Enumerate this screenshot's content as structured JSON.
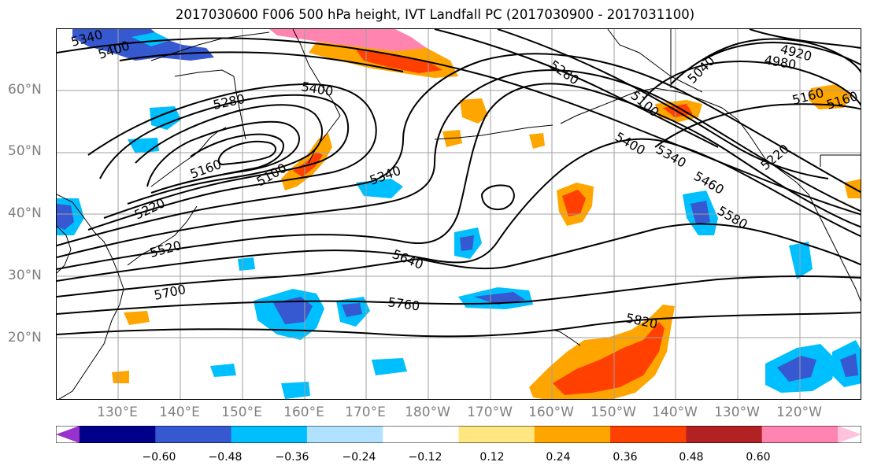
{
  "title": "2017030600 F006 500 hPa height, IVT Landfall PC (2017030900 - 2017031100)",
  "lat_labels": [
    "60°N",
    "50°N",
    "40°N",
    "30°N",
    "20°N"
  ],
  "lon_labels": [
    "130°E",
    "140°E",
    "150°E",
    "160°E",
    "170°E",
    "180°W",
    "170°W",
    "160°W",
    "150°W",
    "140°W",
    "130°W",
    "120°W"
  ],
  "contour_labels": [
    "5340",
    "5400",
    "5280",
    "5400",
    "5280",
    "5160",
    "5100",
    "5160",
    "5340",
    "5220",
    "5520",
    "5640",
    "5700",
    "5760",
    "5820",
    "5040",
    "4980",
    "4920",
    "5100",
    "5400",
    "5340",
    "5460",
    "5580",
    "5160",
    "5220"
  ],
  "colorbar": {
    "ticks": [
      "−0.60",
      "−0.48",
      "−0.36",
      "−0.24",
      "−0.12",
      "0.12",
      "0.24",
      "0.36",
      "0.48",
      "0.60"
    ],
    "colors": [
      "#9932cc",
      "#00008b",
      "#3658d0",
      "#00bfff",
      "#b0e2ff",
      "#ffffff",
      "#ffe680",
      "#ffa500",
      "#ff4000",
      "#b22222",
      "#ff85b0",
      "#ffc1dc"
    ]
  },
  "colors": {
    "lat_lon_text": "#808080",
    "contour": "#000000",
    "gridline": "#a0a0a0"
  }
}
